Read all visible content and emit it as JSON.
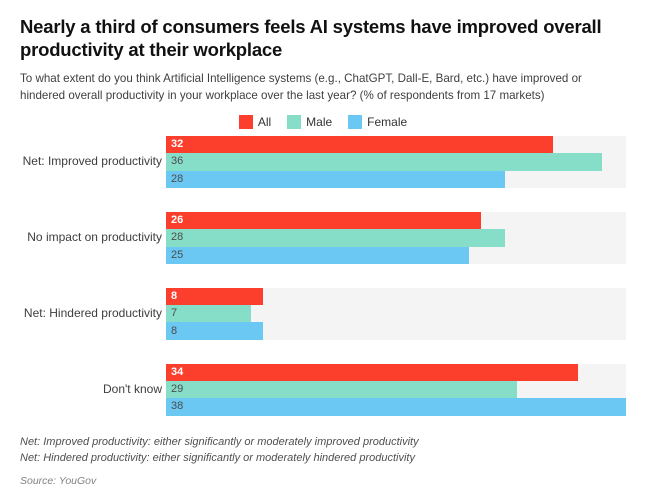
{
  "header": {
    "title": "Nearly a third of consumers feels AI systems have improved overall productivity at their workplace",
    "subtitle": "To what extent do you think Artificial Intelligence systems (e.g., ChatGPT, Dall-E, Bard, etc.) have improved or hindered overall productivity in your workplace over the last year? (% of respondents from 17 markets)"
  },
  "chart_data": {
    "type": "bar",
    "orientation": "horizontal",
    "title": "Nearly a third of consumers feels AI systems have improved overall productivity at their workplace",
    "subtitle": "To what extent do you think Artificial Intelligence systems (e.g., ChatGPT, Dall-E, Bard, etc.) have improved or hindered overall productivity in your workplace over the last year? (% of respondents from 17 markets)",
    "categories": [
      "Net: Improved productivity",
      "No impact on productivity",
      "Net: Hindered productivity",
      "Don't know"
    ],
    "series": [
      {
        "name": "All",
        "color": "#fb3f2c",
        "value_label_color": "#ffffff",
        "value_label_bold": true,
        "values": [
          32,
          26,
          8,
          34
        ]
      },
      {
        "name": "Male",
        "color": "#86ddc8",
        "value_label_color": "#4d4d4d",
        "value_label_bold": false,
        "values": [
          36,
          28,
          7,
          29
        ]
      },
      {
        "name": "Female",
        "color": "#6ac8f3",
        "value_label_color": "#4d4d4d",
        "value_label_bold": false,
        "values": [
          28,
          25,
          8,
          38
        ]
      }
    ],
    "xlim": [
      0,
      38
    ],
    "value_labels": "inside-left",
    "track_color": "#f4f4f5",
    "grid": false,
    "legend_position": "top-center",
    "xlabel": "",
    "ylabel": ""
  },
  "footnotes": {
    "line1": "Net: Improved productivity: either significantly or moderately improved productivity",
    "line2": "Net: Hindered productivity: either significantly or moderately hindered productivity",
    "source": "Source: YouGov"
  }
}
